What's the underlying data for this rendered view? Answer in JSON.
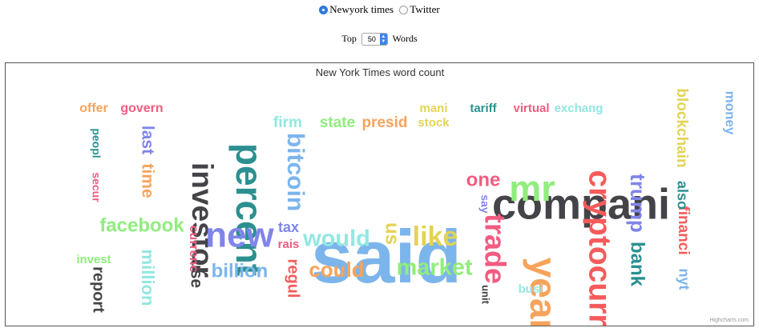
{
  "source_selector": {
    "options": [
      {
        "label": "Newyork times",
        "checked": true
      },
      {
        "label": "Twitter",
        "checked": false
      }
    ]
  },
  "top_selector": {
    "prefix": "Top",
    "value": "50",
    "suffix": "Words"
  },
  "chart_data": {
    "type": "wordcloud",
    "title": "New York Times word count",
    "credits": "Highcharts.com",
    "colors": {
      "blue": "#7cb5ec",
      "dark": "#434348",
      "green": "#90ed7d",
      "orange": "#f7a35c",
      "purple": "#8085e9",
      "pink": "#f15c80",
      "yellow": "#e4d354",
      "teal": "#2b908f",
      "red": "#f45b5b",
      "cyan": "#91e8e1"
    },
    "words": [
      {
        "text": "said",
        "color": "blue",
        "rotation": 0
      },
      {
        "text": "compani",
        "color": "dark",
        "rotation": 0
      },
      {
        "text": "percent",
        "color": "teal",
        "rotation": 90
      },
      {
        "text": "investor",
        "color": "dark",
        "rotation": 90
      },
      {
        "text": "year",
        "color": "orange",
        "rotation": 90
      },
      {
        "text": "cryptocurr",
        "color": "red",
        "rotation": 90
      },
      {
        "text": "new",
        "color": "purple",
        "rotation": 0
      },
      {
        "text": "mr",
        "color": "green",
        "rotation": 0
      },
      {
        "text": "trade",
        "color": "pink",
        "rotation": 90
      },
      {
        "text": "bitcoin",
        "color": "blue",
        "rotation": 90
      },
      {
        "text": "like",
        "color": "yellow",
        "rotation": 0
      },
      {
        "text": "market",
        "color": "green",
        "rotation": 0
      },
      {
        "text": "would",
        "color": "cyan",
        "rotation": 0
      },
      {
        "text": "trump",
        "color": "purple",
        "rotation": 90
      },
      {
        "text": "facebook",
        "color": "green",
        "rotation": 0
      },
      {
        "text": "could",
        "color": "orange",
        "rotation": 0
      },
      {
        "text": "billion",
        "color": "blue",
        "rotation": 0
      },
      {
        "text": "million",
        "color": "cyan",
        "rotation": 90
      },
      {
        "text": "bank",
        "color": "teal",
        "rotation": 90
      },
      {
        "text": "blockchain",
        "color": "yellow",
        "rotation": 90
      },
      {
        "text": "one",
        "color": "pink",
        "rotation": 0
      },
      {
        "text": "last",
        "color": "purple",
        "rotation": 90
      },
      {
        "text": "time",
        "color": "orange",
        "rotation": 90
      },
      {
        "text": "use",
        "color": "dark",
        "rotation": 90
      },
      {
        "text": "report",
        "color": "dark",
        "rotation": 90
      },
      {
        "text": "regul",
        "color": "red",
        "rotation": 90
      },
      {
        "text": "financi",
        "color": "red",
        "rotation": 90
      },
      {
        "text": "us",
        "color": "yellow",
        "rotation": 90
      },
      {
        "text": "presid",
        "color": "orange",
        "rotation": 0
      },
      {
        "text": "state",
        "color": "green",
        "rotation": 0
      },
      {
        "text": "firm",
        "color": "cyan",
        "rotation": 0
      },
      {
        "text": "tax",
        "color": "purple",
        "rotation": 0
      },
      {
        "text": "money",
        "color": "blue",
        "rotation": 90
      },
      {
        "text": "also",
        "color": "teal",
        "rotation": 90
      },
      {
        "text": "nyt",
        "color": "blue",
        "rotation": 90
      },
      {
        "text": "currenc",
        "color": "pink",
        "rotation": 90
      },
      {
        "text": "offer",
        "color": "orange",
        "rotation": 0
      },
      {
        "text": "govern",
        "color": "pink",
        "rotation": 0
      },
      {
        "text": "tariff",
        "color": "teal",
        "rotation": 0
      },
      {
        "text": "virtual",
        "color": "pink",
        "rotation": 0
      },
      {
        "text": "exchang",
        "color": "cyan",
        "rotation": 0
      },
      {
        "text": "mani",
        "color": "yellow",
        "rotation": 0
      },
      {
        "text": "stock",
        "color": "yellow",
        "rotation": 0
      },
      {
        "text": "rais",
        "color": "pink",
        "rotation": 0
      },
      {
        "text": "invest",
        "color": "green",
        "rotation": 0
      },
      {
        "text": "busi",
        "color": "cyan",
        "rotation": 0
      },
      {
        "text": "peopl",
        "color": "teal",
        "rotation": 90
      },
      {
        "text": "secur",
        "color": "pink",
        "rotation": 90
      },
      {
        "text": "say",
        "color": "purple",
        "rotation": 90
      },
      {
        "text": "unit",
        "color": "dark",
        "rotation": 90
      }
    ]
  }
}
